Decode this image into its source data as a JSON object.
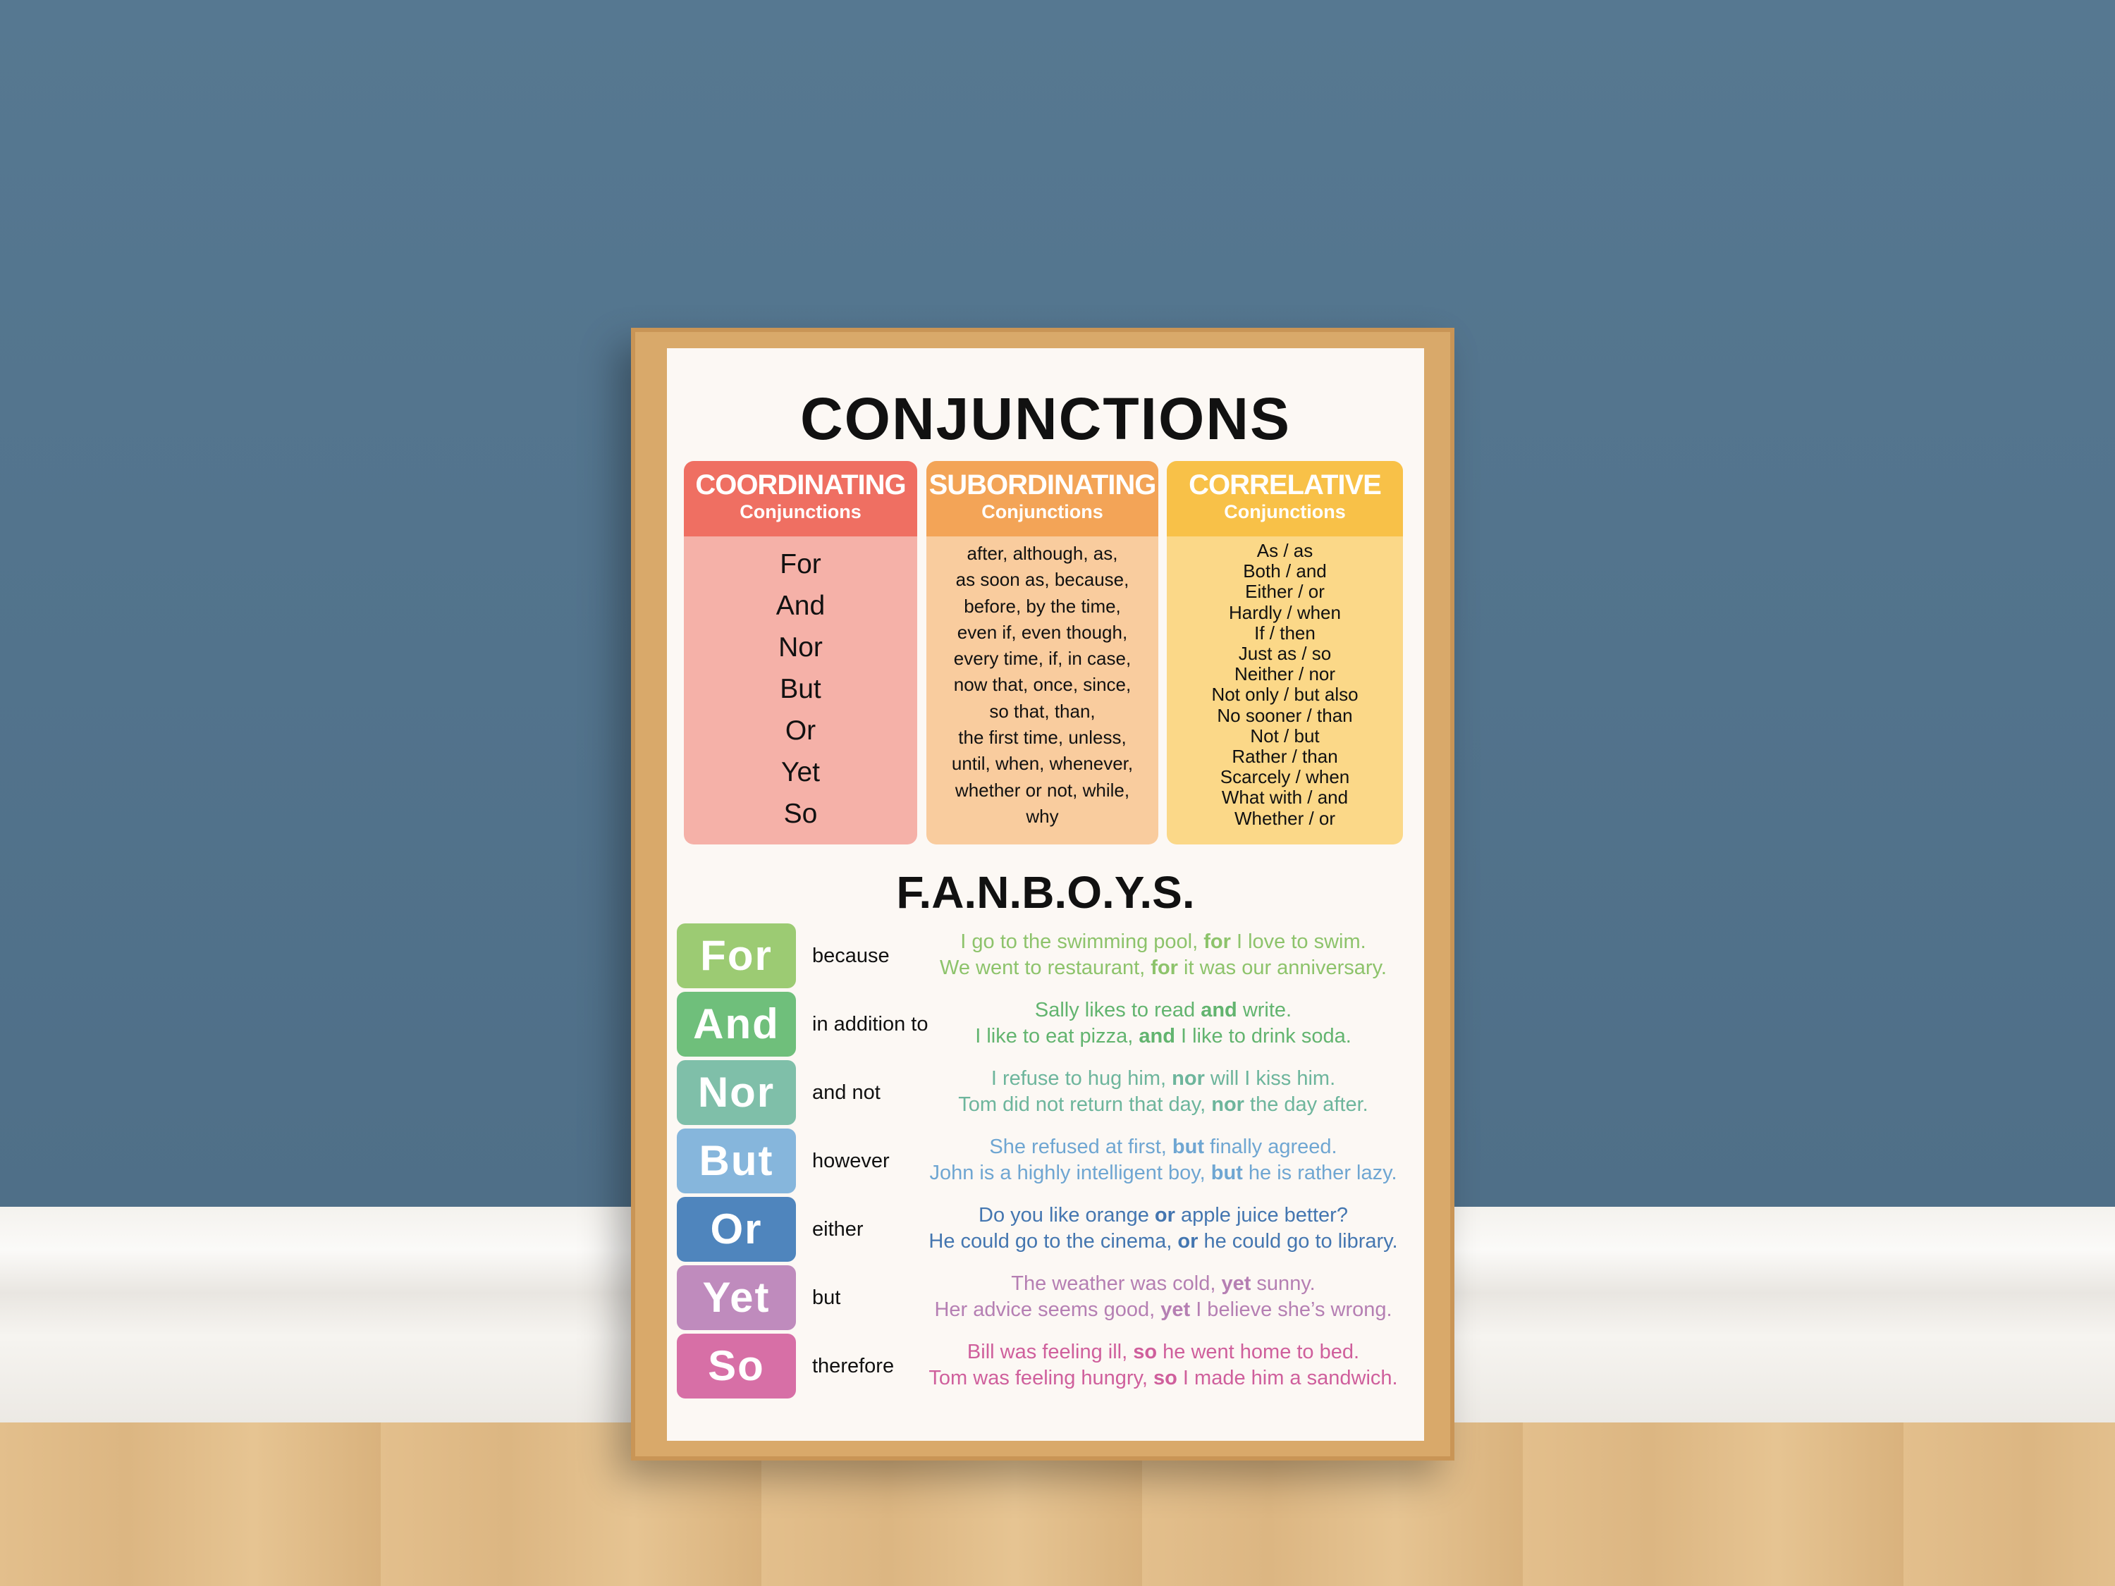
{
  "title": "CONJUNCTIONS",
  "columns": [
    {
      "title": "COORDINATING",
      "subtitle": "Conjunctions",
      "color": "#ef6f62",
      "items": [
        "For",
        "And",
        "Nor",
        "But",
        "Or",
        "Yet",
        "So"
      ]
    },
    {
      "title": "SUBORDINATING",
      "subtitle": "Conjunctions",
      "color": "#f3a457",
      "items": [
        "after, although, as,",
        "as soon as, because,",
        "before, by the time,",
        "even if, even though,",
        "every time, if, in case,",
        "now that, once, since,",
        "so that, than,",
        "the first time, unless,",
        "until, when, whenever,",
        "whether or not, while,",
        "why"
      ]
    },
    {
      "title": "CORRELATIVE",
      "subtitle": "Conjunctions",
      "color": "#f8c148",
      "items": [
        "As / as",
        "Both / and",
        "Either / or",
        "Hardly / when",
        "If / then",
        "Just as / so",
        "Neither / nor",
        "Not only / but also",
        "No sooner / than",
        "Not / but",
        "Rather / than",
        "Scarcely / when",
        "What with / and",
        "Whether / or"
      ]
    }
  ],
  "fanboys_title": "F.A.N.B.O.Y.S.",
  "fanboys": [
    {
      "word": "For",
      "meaning": "because",
      "color": "#9ccb73",
      "text": "#8dc36b",
      "examples": [
        [
          "I go to the swimming pool, ",
          "for",
          " I love to swim."
        ],
        [
          "We went to restaurant, ",
          "for",
          " it was our anniversary."
        ]
      ]
    },
    {
      "word": "And",
      "meaning": "in addition to",
      "color": "#6fbf7b",
      "text": "#62b46f",
      "examples": [
        [
          "Sally likes to read ",
          "and",
          " write."
        ],
        [
          "I like to eat pizza, ",
          "and",
          " I like to drink soda."
        ]
      ]
    },
    {
      "word": "Nor",
      "meaning": "and not",
      "color": "#7fbfa9",
      "text": "#6db59c",
      "examples": [
        [
          "I refuse to hug him, ",
          "nor",
          " will I kiss him."
        ],
        [
          "Tom did not return that day, ",
          "nor",
          " the day after."
        ]
      ]
    },
    {
      "word": "But",
      "meaning": "however",
      "color": "#86b6dc",
      "text": "#6fa6d2",
      "examples": [
        [
          "She refused at first, ",
          "but",
          " finally agreed."
        ],
        [
          "John is a highly intelligent boy, ",
          "but",
          " he is rather lazy."
        ]
      ]
    },
    {
      "word": "Or",
      "meaning": "either",
      "color": "#4f85bd",
      "text": "#4476b0",
      "examples": [
        [
          "Do you like orange ",
          "or",
          " apple juice better?"
        ],
        [
          "He could go to the cinema, ",
          "or",
          " he could go to library."
        ]
      ]
    },
    {
      "word": "Yet",
      "meaning": "but",
      "color": "#bf8bbd",
      "text": "#b57fb3",
      "examples": [
        [
          "The weather was cold, ",
          "yet",
          " sunny."
        ],
        [
          "Her advice seems good, ",
          "yet",
          " I believe she’s wrong."
        ]
      ]
    },
    {
      "word": "So",
      "meaning": "therefore",
      "color": "#d76fa6",
      "text": "#cf5f9c",
      "examples": [
        [
          "Bill was feeling ill, ",
          "so",
          " he went home to bed."
        ],
        [
          "Tom was feeling hungry, ",
          "so",
          " I made him a sandwich."
        ]
      ]
    }
  ]
}
